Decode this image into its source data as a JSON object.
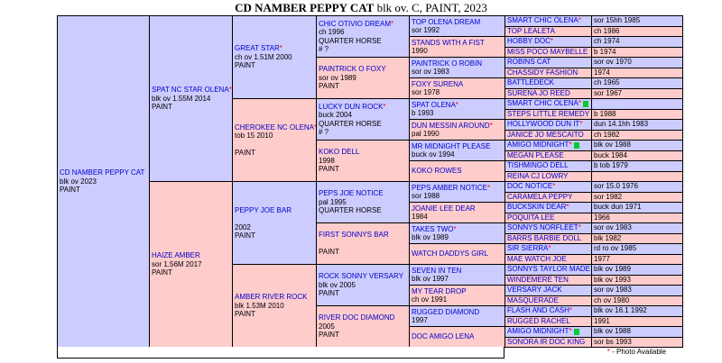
{
  "title": {
    "name": "CD NAMBER PEPPY CAT",
    "suffix": " blk ov. C, PAINT, 2023"
  },
  "footer": {
    "star": "*",
    "label": " - Photo Available"
  },
  "colors": {
    "sire_bg": "#ccccff",
    "dam_bg": "#ffcccc",
    "name_link": "#0000cc",
    "photo_star": "#ff0000",
    "duplicate_marker": "#00cc33",
    "border": "#000000"
  },
  "tree_nodes": [
    {
      "col": 1,
      "row": 1,
      "span": 32,
      "sex": "sire",
      "name": "CD NAMBER PEPPY CAT",
      "star": false,
      "details": [
        "blk ov 2023",
        "PAINT"
      ]
    },
    {
      "col": 2,
      "row": 1,
      "span": 16,
      "sex": "sire",
      "name": "SPAT NC STAR OLENA",
      "star": true,
      "details": [
        "blk ov 1.55M 2014",
        "PAINT"
      ]
    },
    {
      "col": 2,
      "row": 17,
      "span": 16,
      "sex": "dam",
      "name": "HAIZE AMBER",
      "star": false,
      "details": [
        "sor 1.56M 2017",
        "PAINT"
      ]
    },
    {
      "col": 3,
      "row": 1,
      "span": 8,
      "sex": "sire",
      "name": "GREAT STAR",
      "star": true,
      "details": [
        "ch ov 1.51M 2000",
        "PAINT"
      ]
    },
    {
      "col": 3,
      "row": 9,
      "span": 8,
      "sex": "dam",
      "name": "CHEROKEE NC OLENA",
      "star": true,
      "details": [
        "tob 15 2010",
        "",
        "PAINT"
      ]
    },
    {
      "col": 3,
      "row": 17,
      "span": 8,
      "sex": "sire",
      "name": "PEPPY JOE BAR",
      "star": false,
      "details": [
        "",
        "2002",
        "PAINT"
      ]
    },
    {
      "col": 3,
      "row": 25,
      "span": 8,
      "sex": "dam",
      "name": "AMBER RIVER ROCK",
      "star": false,
      "details": [
        "blk 1.53M 2010",
        "PAINT"
      ]
    },
    {
      "col": 4,
      "row": 1,
      "span": 4,
      "sex": "sire",
      "name": "CHIC OTIVIO DREAM",
      "star": true,
      "details": [
        "ch 1996",
        "QUARTER HORSE",
        "# ?"
      ]
    },
    {
      "col": 4,
      "row": 5,
      "span": 4,
      "sex": "dam",
      "name": "PAINTRICK O FOXY",
      "star": false,
      "details": [
        "sor ov 1989",
        "PAINT"
      ]
    },
    {
      "col": 4,
      "row": 9,
      "span": 4,
      "sex": "sire",
      "name": "LUCKY DUN ROCK",
      "star": true,
      "details": [
        "buck 2004",
        "QUARTER HORSE",
        "# ?"
      ]
    },
    {
      "col": 4,
      "row": 13,
      "span": 4,
      "sex": "dam",
      "name": "KOKO DELL",
      "star": false,
      "details": [
        "1998",
        "PAINT"
      ]
    },
    {
      "col": 4,
      "row": 17,
      "span": 4,
      "sex": "sire",
      "name": "PEPS JOE NOTICE",
      "star": false,
      "details": [
        "pal 1995",
        "QUARTER HORSE"
      ]
    },
    {
      "col": 4,
      "row": 21,
      "span": 4,
      "sex": "dam",
      "name": "FIRST SONNYS BAR",
      "star": false,
      "details": [
        "",
        "PAINT"
      ]
    },
    {
      "col": 4,
      "row": 25,
      "span": 4,
      "sex": "sire",
      "name": "ROCK SONNY VERSARY",
      "star": false,
      "details": [
        "blk ov 2005",
        "PAINT"
      ]
    },
    {
      "col": 4,
      "row": 29,
      "span": 4,
      "sex": "dam",
      "name": "RIVER DOC DIAMOND",
      "star": false,
      "details": [
        "2005",
        "PAINT"
      ]
    },
    {
      "col": 5,
      "row": 1,
      "span": 2,
      "sex": "sire",
      "name": "TOP OLENA DREAM",
      "star": false,
      "details": [
        "sor 1992"
      ]
    },
    {
      "col": 5,
      "row": 3,
      "span": 2,
      "sex": "dam",
      "name": "STANDS WITH A FIST",
      "star": false,
      "details": [
        "1990"
      ]
    },
    {
      "col": 5,
      "row": 5,
      "span": 2,
      "sex": "sire",
      "name": "PAINTRICK O ROBIN",
      "star": false,
      "details": [
        "sor ov 1983"
      ]
    },
    {
      "col": 5,
      "row": 7,
      "span": 2,
      "sex": "dam",
      "name": "FOXY SURENA",
      "star": false,
      "details": [
        "sor 1978"
      ]
    },
    {
      "col": 5,
      "row": 9,
      "span": 2,
      "sex": "sire",
      "name": "SPAT OLENA",
      "star": true,
      "details": [
        "b 1993"
      ]
    },
    {
      "col": 5,
      "row": 11,
      "span": 2,
      "sex": "dam",
      "name": "DUN MESSIN AROUND",
      "star": true,
      "details": [
        "pal 1990"
      ]
    },
    {
      "col": 5,
      "row": 13,
      "span": 2,
      "sex": "sire",
      "name": "MR MIDNIGHT PLEASE",
      "star": false,
      "details": [
        "buck ov 1994"
      ]
    },
    {
      "col": 5,
      "row": 15,
      "span": 2,
      "sex": "dam",
      "name": "KOKO ROWES",
      "star": false,
      "details": []
    },
    {
      "col": 5,
      "row": 17,
      "span": 2,
      "sex": "sire",
      "name": "PEPS AMBER NOTICE",
      "star": true,
      "details": [
        "sor 1988"
      ]
    },
    {
      "col": 5,
      "row": 19,
      "span": 2,
      "sex": "dam",
      "name": "JOANIE LEE DEAR",
      "star": false,
      "details": [
        "1984"
      ]
    },
    {
      "col": 5,
      "row": 21,
      "span": 2,
      "sex": "sire",
      "name": "TAKES TWO",
      "star": true,
      "details": [
        "blk ov 1989"
      ]
    },
    {
      "col": 5,
      "row": 23,
      "span": 2,
      "sex": "dam",
      "name": "WATCH DADDYS GIRL",
      "star": false,
      "details": []
    },
    {
      "col": 5,
      "row": 25,
      "span": 2,
      "sex": "sire",
      "name": "SEVEN IN TEN",
      "star": false,
      "details": [
        "blk ov 1997"
      ]
    },
    {
      "col": 5,
      "row": 27,
      "span": 2,
      "sex": "dam",
      "name": "MY TEAR DROP",
      "star": false,
      "details": [
        "ch ov 1991"
      ]
    },
    {
      "col": 5,
      "row": 29,
      "span": 2,
      "sex": "sire",
      "name": "RUGGED DIAMOND",
      "star": false,
      "details": [
        "1997"
      ]
    },
    {
      "col": 5,
      "row": 31,
      "span": 2,
      "sex": "dam",
      "name": "DOC AMIGO LENA",
      "star": false,
      "details": []
    }
  ],
  "gen6": [
    {
      "sex": "sire",
      "name": "SMART CHIC OLENA",
      "star": true,
      "marker": false,
      "desc": "sor 15hh 1985"
    },
    {
      "sex": "dam",
      "name": "TOP LEALETA",
      "star": false,
      "marker": false,
      "desc": "ch 1986"
    },
    {
      "sex": "sire",
      "name": "HOBBY DOC",
      "star": true,
      "marker": false,
      "desc": "ch 1974"
    },
    {
      "sex": "dam",
      "name": "MISS POCO MAYBELLE",
      "star": false,
      "marker": false,
      "desc": "b 1974"
    },
    {
      "sex": "sire",
      "name": "ROBINS CAT",
      "star": false,
      "marker": false,
      "desc": "sor ov 1970"
    },
    {
      "sex": "dam",
      "name": "CHASSIDY FASHION",
      "star": false,
      "marker": false,
      "desc": "1974"
    },
    {
      "sex": "sire",
      "name": "BATTLEDECK",
      "star": false,
      "marker": false,
      "desc": "ch 1965"
    },
    {
      "sex": "dam",
      "name": "SURENA JO REED",
      "star": false,
      "marker": false,
      "desc": "sor 1967"
    },
    {
      "sex": "sire",
      "name": "SMART CHIC OLENA",
      "star": true,
      "marker": true,
      "desc": ""
    },
    {
      "sex": "dam",
      "name": "STEPS LITTLE REMEDY",
      "star": false,
      "marker": false,
      "desc": "b 1988"
    },
    {
      "sex": "sire",
      "name": "HOLLYWOOD DUN IT",
      "star": true,
      "marker": false,
      "desc": "dun 14.1hh 1983"
    },
    {
      "sex": "dam",
      "name": "JANICE JO MESCAITO",
      "star": false,
      "marker": false,
      "desc": "ch 1982"
    },
    {
      "sex": "sire",
      "name": "AMIGO MIDNIGHT",
      "star": true,
      "marker": true,
      "desc": "blk ov 1988"
    },
    {
      "sex": "dam",
      "name": "MEGAN PLEASE",
      "star": false,
      "marker": false,
      "desc": "buck 1984"
    },
    {
      "sex": "sire",
      "name": "TISHMINGO DELL",
      "star": false,
      "marker": false,
      "desc": "b tob 1979"
    },
    {
      "sex": "dam",
      "name": "REINA CJ LOWRY",
      "star": false,
      "marker": false,
      "desc": ""
    },
    {
      "sex": "sire",
      "name": "DOC NOTICE",
      "star": true,
      "marker": false,
      "desc": "sor 15.0 1976"
    },
    {
      "sex": "dam",
      "name": "CARAMELA PEPPY",
      "star": false,
      "marker": false,
      "desc": "sor 1982"
    },
    {
      "sex": "sire",
      "name": "BUCKSKIN DEAR",
      "star": true,
      "marker": false,
      "desc": "buck dun 1971"
    },
    {
      "sex": "dam",
      "name": "POQUITA LEE",
      "star": false,
      "marker": false,
      "desc": "1966"
    },
    {
      "sex": "sire",
      "name": "SONNYS NORFLEET",
      "star": true,
      "marker": false,
      "desc": "sor ov 1983"
    },
    {
      "sex": "dam",
      "name": "BARRS BARBIE DOLL",
      "star": false,
      "marker": false,
      "desc": "blk 1982"
    },
    {
      "sex": "sire",
      "name": "SIR SIERRA",
      "star": true,
      "marker": false,
      "desc": "rd ro ov 1985"
    },
    {
      "sex": "dam",
      "name": "MAE WATCH JOE",
      "star": false,
      "marker": false,
      "desc": "1977"
    },
    {
      "sex": "sire",
      "name": "SONNYS TAYLOR MADE",
      "star": false,
      "marker": false,
      "desc": "blk ov 1989"
    },
    {
      "sex": "dam",
      "name": "WINDEMERE TEN",
      "star": false,
      "marker": false,
      "desc": "blk ov 1993"
    },
    {
      "sex": "sire",
      "name": "VERSARY JACK",
      "star": false,
      "marker": false,
      "desc": "sor ov 1983"
    },
    {
      "sex": "dam",
      "name": "MASQUERADE",
      "star": false,
      "marker": false,
      "desc": "ch ov 1980"
    },
    {
      "sex": "sire",
      "name": "FLASH AND CASH",
      "star": true,
      "marker": false,
      "desc": "blk ov 16.1 1992"
    },
    {
      "sex": "dam",
      "name": "RUGGED RACHEL",
      "star": false,
      "marker": false,
      "desc": "1991"
    },
    {
      "sex": "sire",
      "name": "AMIGO MIDNIGHT",
      "star": true,
      "marker": true,
      "desc": "blk ov 1988"
    },
    {
      "sex": "dam",
      "name": "SONORA IR DOC KING",
      "star": false,
      "marker": false,
      "desc": "sor bs 1993"
    }
  ]
}
